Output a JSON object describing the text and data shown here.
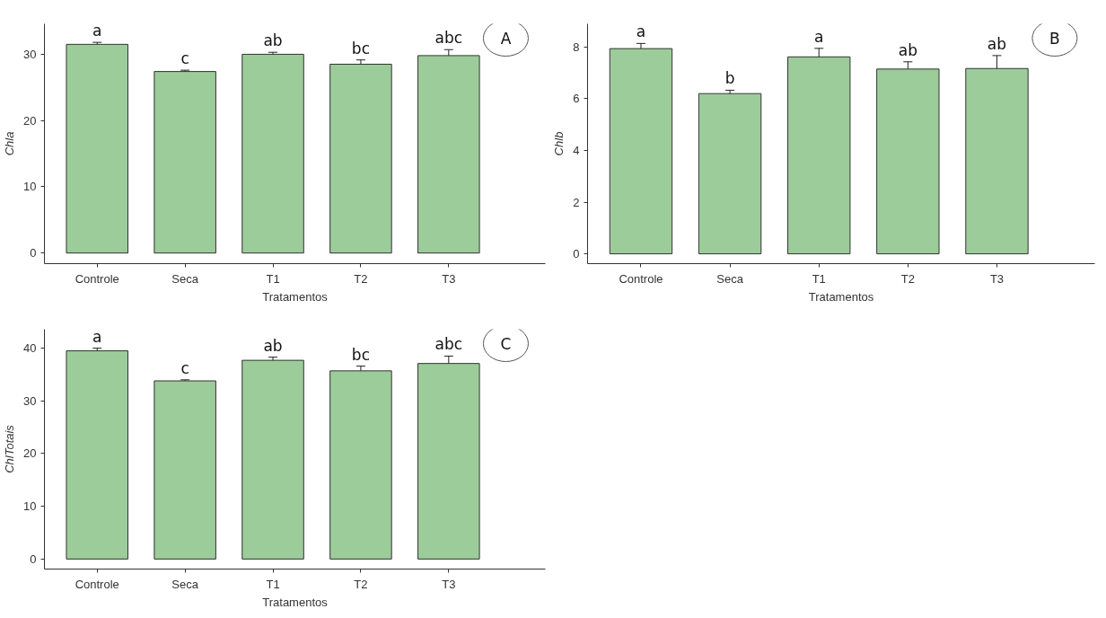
{
  "chart_data": [
    {
      "type": "bar",
      "xlabel": "Tratamentos",
      "ylabel": "Chla",
      "categories": [
        "Controle",
        "Seca",
        "T1",
        "T2",
        "T3"
      ],
      "values": [
        31.5,
        27.4,
        30.0,
        28.5,
        29.8
      ],
      "errors": [
        0.3,
        0.2,
        0.3,
        0.65,
        0.9
      ],
      "color": "#9ccc9a",
      "ylim": [
        -1.6,
        34.6
      ],
      "yticks": [
        0,
        10,
        20,
        30
      ],
      "grid": false,
      "annotations": [
        "A",
        {
          "text": "a",
          "x": "Controle",
          "y": 31.5
        },
        {
          "text": "c",
          "x": "Seca",
          "y": 27.4
        },
        {
          "text": "ab",
          "x": "T1",
          "y": 30.0
        },
        {
          "text": "bc",
          "x": "T2",
          "y": 28.5
        },
        {
          "text": "abc",
          "x": "T3",
          "y": 29.8
        }
      ]
    },
    {
      "type": "bar",
      "xlabel": "Tratamentos",
      "ylabel": "Chlb",
      "categories": [
        "Controle",
        "Seca",
        "T1",
        "T2",
        "T3"
      ],
      "values": [
        7.94,
        6.2,
        7.62,
        7.15,
        7.17
      ],
      "errors": [
        0.2,
        0.13,
        0.33,
        0.28,
        0.5
      ],
      "color": "#9ccc9a",
      "ylim": [
        -0.38,
        8.9
      ],
      "yticks": [
        0,
        2,
        4,
        6,
        8
      ],
      "grid": false,
      "annotations": [
        "B",
        {
          "text": "a",
          "x": "Controle",
          "y": 7.94
        },
        {
          "text": "b",
          "x": "Seca",
          "y": 6.2
        },
        {
          "text": "a",
          "x": "T1",
          "y": 7.62
        },
        {
          "text": "ab",
          "x": "T2",
          "y": 7.15
        },
        {
          "text": "ab",
          "x": "T3",
          "y": 7.17
        }
      ]
    },
    {
      "type": "bar",
      "xlabel": "Tratamentos",
      "ylabel": "ChlTotais",
      "categories": [
        "Controle",
        "Seca",
        "T1",
        "T2",
        "T3"
      ],
      "values": [
        39.5,
        33.8,
        37.7,
        35.7,
        37.1
      ],
      "errors": [
        0.5,
        0.2,
        0.6,
        0.9,
        1.4
      ],
      "color": "#9ccc9a",
      "ylim": [
        -1.9,
        43.6
      ],
      "yticks": [
        0,
        10,
        20,
        30,
        40
      ],
      "grid": false,
      "annotations": [
        "C",
        {
          "text": "a",
          "x": "Controle",
          "y": 39.5
        },
        {
          "text": "c",
          "x": "Seca",
          "y": 33.8
        },
        {
          "text": "ab",
          "x": "T1",
          "y": 37.7
        },
        {
          "text": "bc",
          "x": "T2",
          "y": 35.7
        },
        {
          "text": "abc",
          "x": "T3",
          "y": 37.1
        }
      ]
    }
  ]
}
